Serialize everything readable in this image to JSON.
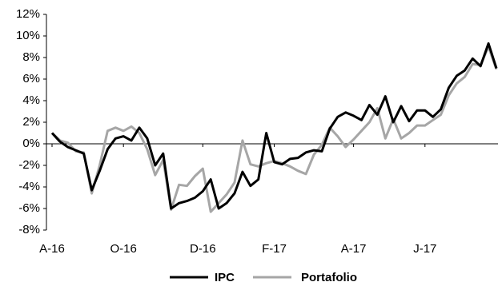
{
  "chart_data": {
    "type": "line",
    "categories": [
      "A-16",
      null,
      null,
      null,
      null,
      null,
      null,
      null,
      null,
      "O-16",
      null,
      null,
      null,
      null,
      null,
      null,
      null,
      null,
      null,
      "D-16",
      null,
      null,
      null,
      null,
      null,
      null,
      null,
      null,
      "F-17",
      null,
      null,
      null,
      null,
      null,
      null,
      null,
      null,
      null,
      "A-17",
      null,
      null,
      null,
      null,
      null,
      null,
      null,
      null,
      "J-17",
      null,
      null,
      null,
      null,
      null,
      null,
      null,
      null,
      null
    ],
    "series": [
      {
        "name": "IPC",
        "color": "#000000",
        "values": [
          1.0,
          0.2,
          -0.3,
          -0.6,
          -0.9,
          -4.3,
          -2.5,
          -0.5,
          0.5,
          0.7,
          0.3,
          1.5,
          0.5,
          -2.0,
          -0.9,
          -6.0,
          -5.5,
          -5.3,
          -5.0,
          -4.4,
          -3.3,
          -6.0,
          -5.5,
          -4.6,
          -2.6,
          -3.9,
          -3.3,
          1.0,
          -1.7,
          -1.9,
          -1.4,
          -1.3,
          -0.8,
          -0.6,
          -0.7,
          1.4,
          2.5,
          2.9,
          2.6,
          2.2,
          3.6,
          2.7,
          4.4,
          2.0,
          3.5,
          2.1,
          3.1,
          3.1,
          2.5,
          3.2,
          5.2,
          6.3,
          6.8,
          7.9,
          7.2,
          9.3,
          7.0
        ]
      },
      {
        "name": "Portafolio",
        "color": "#a6a6a6",
        "values": [
          1.0,
          0.3,
          0.1,
          -0.7,
          -0.8,
          -4.6,
          -2.0,
          1.2,
          1.5,
          1.2,
          1.6,
          1.0,
          -0.5,
          -2.9,
          -1.5,
          -6.1,
          -3.8,
          -3.9,
          -3.0,
          -2.3,
          -6.3,
          -5.5,
          -4.7,
          -3.6,
          0.3,
          -1.9,
          -2.1,
          -1.8,
          -1.6,
          -1.8,
          -2.1,
          -2.5,
          -2.8,
          -1.0,
          -0.1,
          1.5,
          0.7,
          -0.3,
          0.4,
          1.2,
          2.0,
          3.3,
          0.5,
          2.3,
          0.5,
          1.0,
          1.7,
          1.7,
          2.2,
          2.7,
          4.5,
          5.6,
          6.2,
          7.4,
          7.3,
          9.0,
          6.9
        ]
      }
    ],
    "ylim": [
      -8,
      12
    ],
    "yticks": [
      {
        "value": -8,
        "label": "-8%"
      },
      {
        "value": -6,
        "label": "-6%"
      },
      {
        "value": -4,
        "label": "-4%"
      },
      {
        "value": -2,
        "label": "-2%"
      },
      {
        "value": 0,
        "label": "0%"
      },
      {
        "value": 2,
        "label": "2%"
      },
      {
        "value": 4,
        "label": "4%"
      },
      {
        "value": 6,
        "label": "6%"
      },
      {
        "value": 8,
        "label": "8%"
      },
      {
        "value": 10,
        "label": "10%"
      },
      {
        "value": 12,
        "label": "12%"
      }
    ],
    "legend": "bottom"
  }
}
